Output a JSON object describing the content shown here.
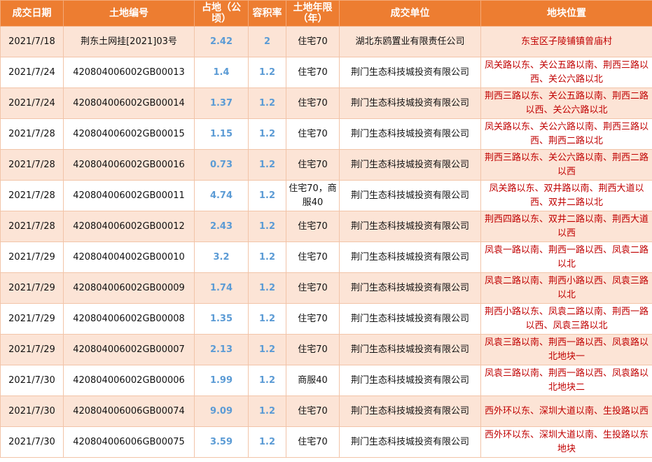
{
  "headers": [
    "成交日期",
    "土地编号",
    "占地（公顷）",
    "容积率",
    "土地年限（年）",
    "成交单位",
    "地块位置"
  ],
  "colors": {
    "header_bg": "#ed7d31",
    "row_alt": "#fce4d6",
    "number": "#5b9bd5",
    "location": "#c00000"
  },
  "rows": [
    [
      "2021/7/18",
      "荆东土网挂[2021]03号",
      "2.42",
      "2",
      "住宅70",
      "湖北东鸥置业有限责任公司",
      "东宝区子陵铺镇曾庙村"
    ],
    [
      "2021/7/24",
      "420804006002GB00013",
      "1.4",
      "1.2",
      "住宅70",
      "荆门生态科技城投资有限公司",
      "凤关路以东、关公五路以南、荆西三路以西、关公六路以北"
    ],
    [
      "2021/7/24",
      "420804006002GB00014",
      "1.37",
      "1.2",
      "住宅70",
      "荆门生态科技城投资有限公司",
      "荆西三路以东、关公五路以南、荆西二路以西、关公六路以北"
    ],
    [
      "2021/7/28",
      "420804006002GB00015",
      "1.15",
      "1.2",
      "住宅70",
      "荆门生态科技城投资有限公司",
      "凤关路以东、关公六路以南、荆西三路以西、荆西二路以北"
    ],
    [
      "2021/7/28",
      "420804006002GB00016",
      "0.73",
      "1.2",
      "住宅70",
      "荆门生态科技城投资有限公司",
      "荆西三路以东、关公六路以南、荆西二路以西"
    ],
    [
      "2021/7/28",
      "420804006002GB00011",
      "4.74",
      "1.2",
      "住宅70，商服40",
      "荆门生态科技城投资有限公司",
      "凤关路以东、双井路以南、荆西大道以西、双井二路以北"
    ],
    [
      "2021/7/28",
      "420804006002GB00012",
      "2.43",
      "1.2",
      "住宅70",
      "荆门生态科技城投资有限公司",
      "荆西四路以东、双井二路以南、荆西大道以西"
    ],
    [
      "2021/7/29",
      "420804004002GB00010",
      "3.2",
      "1.2",
      "住宅70",
      "荆门生态科技城投资有限公司",
      "凤袁一路以南、荆西一路以西、凤袁二路以北"
    ],
    [
      "2021/7/29",
      "420804006002GB00009",
      "1.74",
      "1.2",
      "住宅70",
      "荆门生态科技城投资有限公司",
      "凤袁二路以南、荆西小路以西、凤袁三路以北"
    ],
    [
      "2021/7/29",
      "420804006002GB00008",
      "1.35",
      "1.2",
      "住宅70",
      "荆门生态科技城投资有限公司",
      "荆西小路以东、凤袁二路以南、荆西一路以西、凤袁三路以北"
    ],
    [
      "2021/7/29",
      "420804006002GB00007",
      "2.13",
      "1.2",
      "住宅70",
      "荆门生态科技城投资有限公司",
      "凤袁三路以南、荆西一路以西、凤袁路以北地块一"
    ],
    [
      "2021/7/30",
      "420804006002GB00006",
      "1.99",
      "1.2",
      "商服40",
      "荆门生态科技城投资有限公司",
      "凤袁三路以南、荆西一路以西、凤袁路以北地块二"
    ],
    [
      "2021/7/30",
      "420804006006GB00074",
      "9.09",
      "1.2",
      "住宅70",
      "荆门生态科技城投资有限公司",
      "西外环以东、深圳大道以南、生投路以西"
    ],
    [
      "2021/7/30",
      "420804006006GB00075",
      "3.59",
      "1.2",
      "住宅70",
      "荆门生态科技城投资有限公司",
      "西外环以东、深圳大道以南、生投路以东地块"
    ]
  ]
}
